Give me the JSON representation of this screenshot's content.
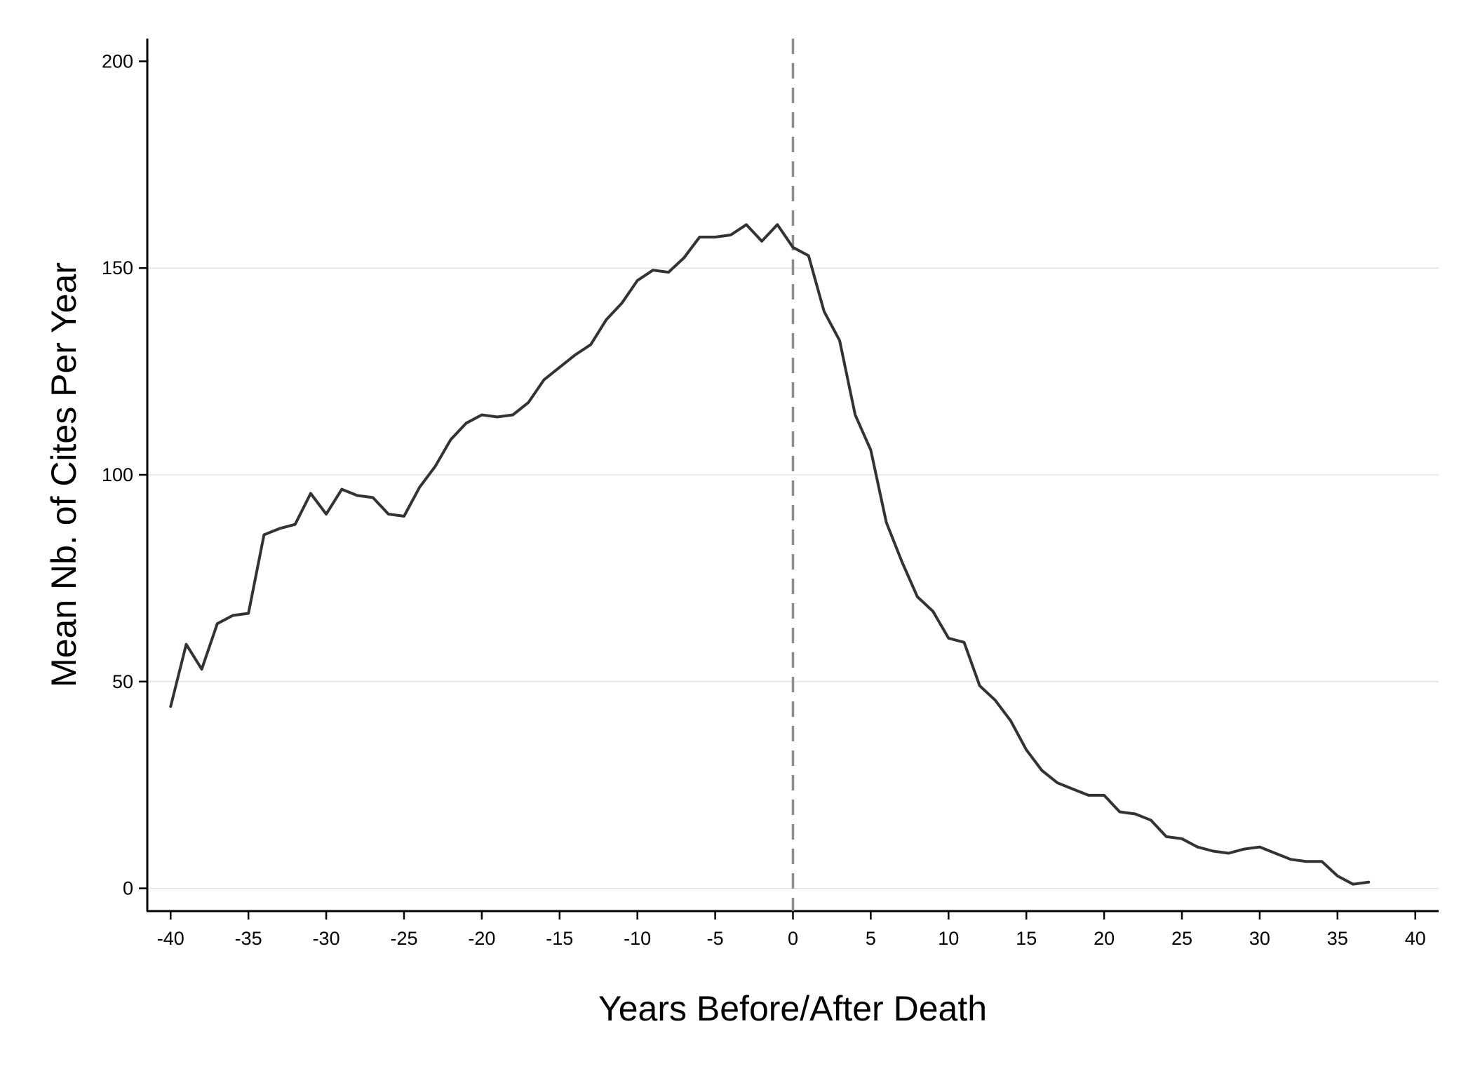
{
  "chart_data": {
    "type": "line",
    "title": "",
    "xlabel": "Years Before/After Death",
    "ylabel": "Mean Nb. of Cites Per Year",
    "xlim": [
      -41.5,
      41.5
    ],
    "ylim": [
      -5.5,
      205.5
    ],
    "xticks": [
      -40,
      -35,
      -30,
      -25,
      -20,
      -15,
      -10,
      -5,
      0,
      5,
      10,
      15,
      20,
      25,
      30,
      35,
      40
    ],
    "yticks": [
      0,
      50,
      100,
      150,
      200
    ],
    "grid": "horizontal",
    "legend": "none",
    "reference_line": {
      "x": 0,
      "style": "dashed",
      "color": "#8c8c8c"
    },
    "line_color": "#333333",
    "grid_color": "#e2e2e2",
    "series": [
      {
        "x": [
          -40,
          -39,
          -38,
          -37,
          -36,
          -35,
          -34,
          -33,
          -32,
          -31,
          -30,
          -29,
          -28,
          -27,
          -26,
          -25,
          -24,
          -23,
          -22,
          -21,
          -20,
          -19,
          -18,
          -17,
          -16,
          -15,
          -14,
          -13,
          -12,
          -11,
          -10,
          -9,
          -8,
          -7,
          -6,
          -5,
          -4,
          -3,
          -2,
          -1,
          0,
          1,
          2,
          3,
          4,
          5,
          6,
          7,
          8,
          9,
          10,
          11,
          12,
          13,
          14,
          15,
          16,
          17,
          18,
          19,
          20,
          21,
          22,
          23,
          24,
          25,
          26,
          27,
          28,
          29,
          30,
          31,
          32,
          33,
          34,
          35,
          36,
          37
        ],
        "y": [
          44,
          59,
          53,
          64,
          66,
          66.5,
          85.5,
          87,
          88,
          95.5,
          90.5,
          96.5,
          95,
          94.5,
          90.5,
          90,
          97,
          102,
          108.5,
          112.5,
          114.5,
          114,
          114.5,
          117.5,
          123,
          126,
          129,
          131.5,
          137.5,
          141.5,
          147,
          149.5,
          149,
          152.5,
          157.5,
          157.5,
          158,
          160.5,
          156.5,
          160.5,
          155,
          153,
          139.5,
          132.5,
          114.5,
          106,
          88.5,
          79,
          70.5,
          67,
          60.5,
          59.5,
          49,
          45.5,
          40.5,
          33.5,
          28.5,
          25.5,
          24,
          22.5,
          22.5,
          18.5,
          18,
          16.5,
          12.5,
          12,
          10,
          9,
          8.5,
          9.5,
          10,
          8.5,
          7,
          6.5,
          6.5,
          3,
          1,
          1.5
        ]
      }
    ]
  }
}
